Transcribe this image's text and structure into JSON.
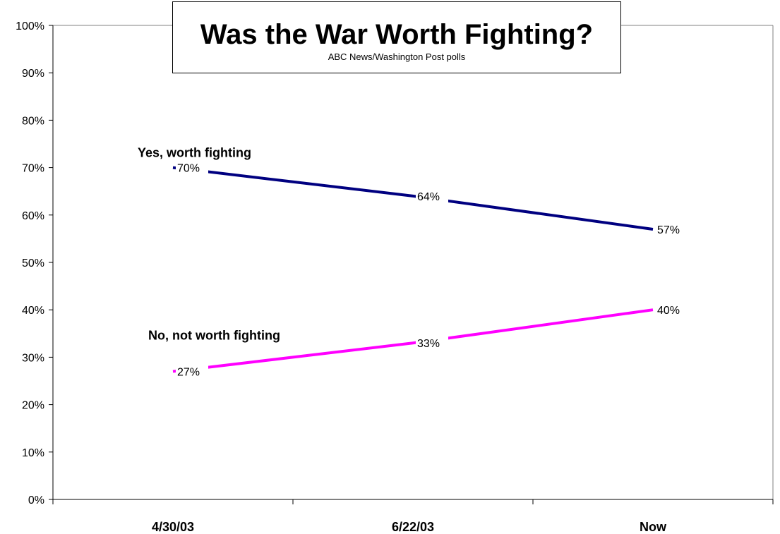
{
  "colors": {
    "yes": "#000080",
    "no": "#ff00ff",
    "axis": "#808080",
    "text": "#000000"
  },
  "chart_data": {
    "type": "line",
    "title": "Was the War Worth Fighting?",
    "subtitle": "ABC News/Washington Post polls",
    "categories": [
      "4/30/03",
      "6/22/03",
      "Now"
    ],
    "y_ticks": [
      "0%",
      "10%",
      "20%",
      "30%",
      "40%",
      "50%",
      "60%",
      "70%",
      "80%",
      "90%",
      "100%"
    ],
    "ylim": [
      0,
      100
    ],
    "grid": false,
    "series": [
      {
        "name": "Yes, worth fighting",
        "values": [
          70,
          64,
          57
        ],
        "labels": [
          "70%",
          "64%",
          "57%"
        ]
      },
      {
        "name": "No, not worth fighting",
        "values": [
          27,
          33,
          40
        ],
        "labels": [
          "27%",
          "33%",
          "40%"
        ]
      }
    ]
  }
}
